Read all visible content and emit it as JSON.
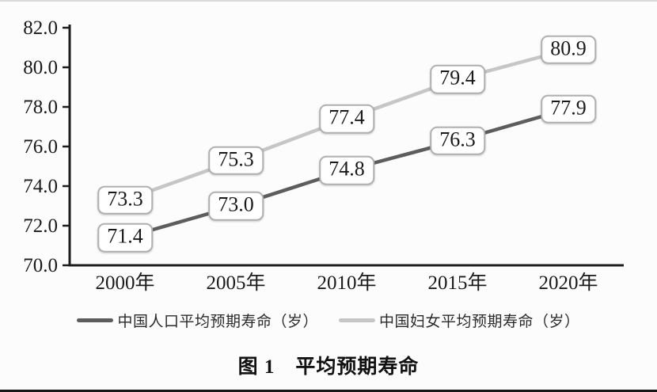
{
  "chart_data": {
    "type": "line",
    "title": "图 1　平均预期寿命",
    "categories": [
      "2000年",
      "2005年",
      "2010年",
      "2015年",
      "2020年"
    ],
    "series": [
      {
        "name": "中国人口平均预期寿命（岁）",
        "values": [
          71.4,
          73.0,
          74.8,
          76.3,
          77.9
        ],
        "color": "#5d5d5d"
      },
      {
        "name": "中国妇女平均预期寿命（岁）",
        "values": [
          73.3,
          75.3,
          77.4,
          79.4,
          80.9
        ],
        "color": "#c6c6c6"
      }
    ],
    "ylim": [
      70.0,
      82.0
    ],
    "ytick_step": 2.0,
    "ytick_labels": [
      "70.0",
      "72.0",
      "74.0",
      "76.0",
      "78.0",
      "80.0",
      "82.0"
    ],
    "xlabel": "",
    "ylabel": "",
    "grid": false,
    "data_labels": true,
    "legend_position": "bottom",
    "colors": {
      "axis": "#1c1c1c",
      "tick_text": "#1a1a1a",
      "label_box_border": "#b0b0b0",
      "label_box_fill": "#ffffff"
    }
  }
}
